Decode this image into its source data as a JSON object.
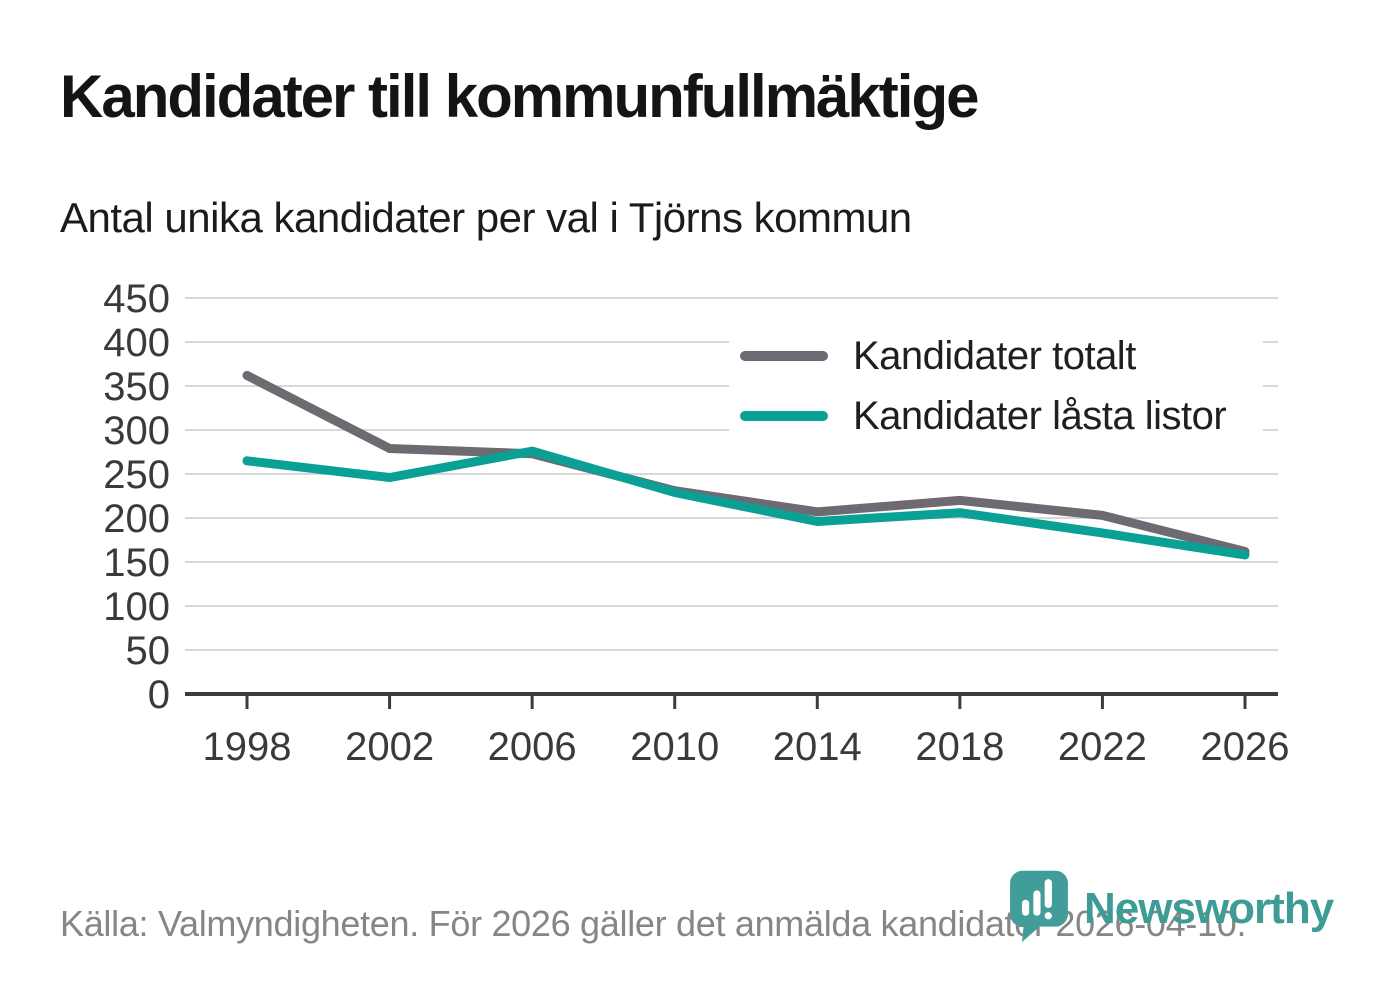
{
  "title": "Kandidater till kommunfullmäktige",
  "subtitle": "Antal unika kandidater per val i Tjörns kommun",
  "chart_data": {
    "type": "line",
    "x": [
      1998,
      2002,
      2006,
      2010,
      2014,
      2018,
      2022,
      2026
    ],
    "series": [
      {
        "name": "Kandidater totalt",
        "color": "#6e6a71",
        "values": [
          362,
          279,
          273,
          231,
          207,
          220,
          203,
          162
        ]
      },
      {
        "name": "Kandidater låsta listor",
        "color": "#0aa096",
        "values": [
          265,
          246,
          276,
          229,
          196,
          206,
          183,
          158
        ]
      }
    ],
    "ylim": [
      0,
      450
    ],
    "y_ticks": [
      0,
      50,
      100,
      150,
      200,
      250,
      300,
      350,
      400,
      450
    ],
    "grid": "horizontal",
    "legend_position": "top-right",
    "line_width": 9
  },
  "colors": {
    "gridline": "#d8d8d8",
    "axis": "#3c3c3c",
    "tick_label": "#3a3a3a",
    "series_total": "#6e6a71",
    "series_locked": "#0aa096",
    "logo_teal": "#3e9c97"
  },
  "footer": {
    "source": "Källa: Valmyndigheten. För 2026 gäller det anmälda kandidater 2026-04-10.",
    "brand": "Newsworthy"
  }
}
